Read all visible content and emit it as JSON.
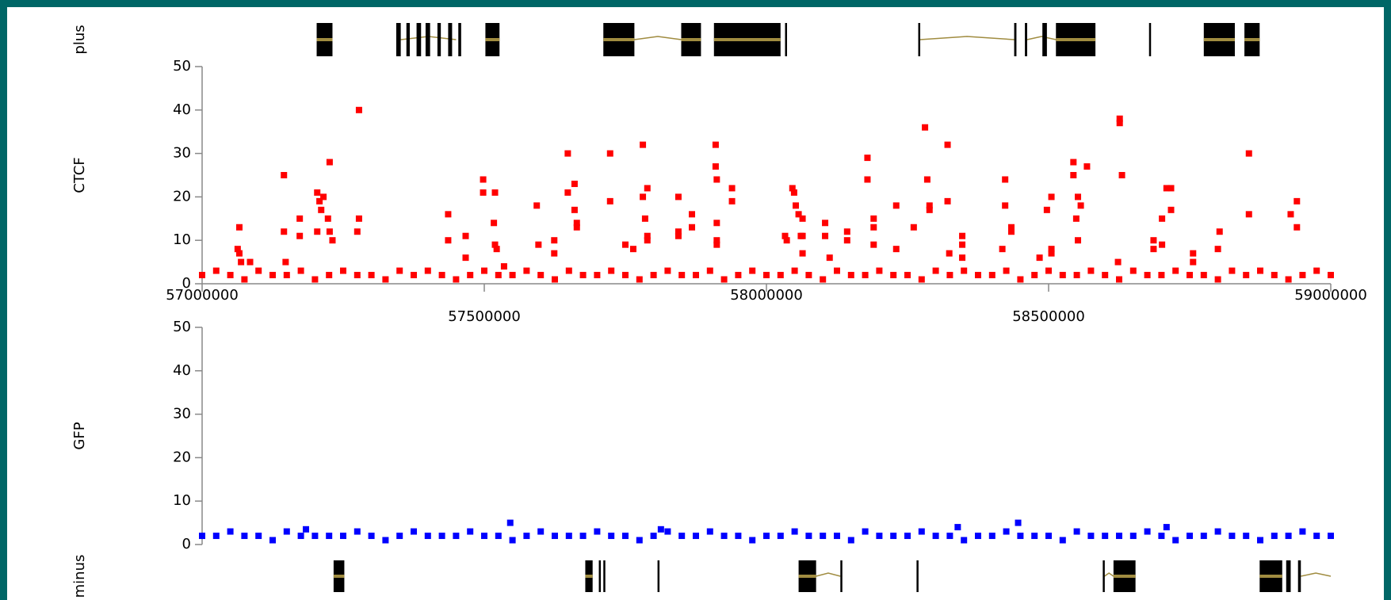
{
  "chart_data": [
    {
      "type": "gene-track",
      "label": "plus",
      "xlim": [
        57000000,
        59000000
      ],
      "strand_color": "#000000",
      "intron_color": "#a08c40",
      "exons": [
        [
          57203000,
          57231000
        ],
        [
          57344000,
          57352000
        ],
        [
          57362000,
          57368000
        ],
        [
          57380000,
          57388000
        ],
        [
          57396000,
          57404000
        ],
        [
          57417000,
          57423000
        ],
        [
          57436000,
          57443000
        ],
        [
          57454000,
          57459000
        ],
        [
          57502000,
          57527000
        ],
        [
          57711000,
          57766000
        ],
        [
          57849000,
          57884000
        ],
        [
          57907000,
          58025000
        ],
        [
          58033000,
          58036000
        ],
        [
          58269000,
          58272000
        ],
        [
          58439000,
          58443000
        ],
        [
          58458000,
          58462000
        ],
        [
          58489000,
          58497000
        ],
        [
          58513000,
          58583000
        ],
        [
          58678000,
          58681000
        ],
        [
          58775000,
          58830000
        ],
        [
          58847000,
          58874000
        ]
      ],
      "introns": [
        [
          57352000,
          57450000
        ],
        [
          57766000,
          57849000
        ],
        [
          58272000,
          58439000
        ],
        [
          58462000,
          58513000
        ]
      ]
    },
    {
      "type": "scatter",
      "ylabel": "CTCF",
      "color": "#ff0000",
      "xlim": [
        57000000,
        59000000
      ],
      "ylim": [
        0,
        50
      ],
      "yticks": [
        0,
        10,
        20,
        30,
        40,
        50
      ],
      "xticks": [
        57000000,
        57500000,
        58000000,
        58500000,
        59000000
      ],
      "x": [
        57000000,
        57025000,
        57050000,
        57075000,
        57100000,
        57125000,
        57150000,
        57175000,
        57200000,
        57225000,
        57250000,
        57275000,
        57300000,
        57325000,
        57350000,
        57375000,
        57400000,
        57425000,
        57450000,
        57475000,
        57500000,
        57525000,
        57550000,
        57575000,
        57600000,
        57625000,
        57650000,
        57675000,
        57700000,
        57725000,
        57750000,
        57775000,
        57800000,
        57825000,
        57850000,
        57875000,
        57900000,
        57925000,
        57950000,
        57975000,
        58000000,
        58025000,
        58050000,
        58075000,
        58100000,
        58125000,
        58150000,
        58175000,
        58200000,
        58225000,
        58250000,
        58275000,
        58300000,
        58325000,
        58350000,
        58375000,
        58400000,
        58425000,
        58450000,
        58475000,
        58500000,
        58525000,
        58550000,
        58575000,
        58600000,
        58625000,
        58650000,
        58675000,
        58700000,
        58725000,
        58750000,
        58775000,
        58800000,
        58825000,
        58850000,
        58875000,
        58900000,
        58925000,
        58950000,
        58975000,
        59000000,
        57066000,
        57063000,
        57066000,
        57069000,
        57085000,
        57145000,
        57145000,
        57148000,
        57173000,
        57173000,
        57204000,
        57208000,
        57211000,
        57204000,
        57215000,
        57223000,
        57226000,
        57226000,
        57231000,
        57278000,
        57278000,
        57275000,
        57436000,
        57436000,
        57467000,
        57467000,
        57498000,
        57498000,
        57519000,
        57517000,
        57519000,
        57522000,
        57535000,
        57593000,
        57596000,
        57624000,
        57624000,
        57648000,
        57648000,
        57660000,
        57660000,
        57664000,
        57664000,
        57723000,
        57723000,
        57750000,
        57764000,
        57781000,
        57781000,
        57785000,
        57789000,
        57789000,
        57789000,
        57844000,
        57844000,
        57844000,
        57868000,
        57868000,
        57910000,
        57910000,
        57912000,
        57912000,
        57912000,
        57912000,
        57939000,
        57939000,
        58046000,
        58049000,
        58052000,
        58057000,
        58061000,
        58033000,
        58036000,
        58064000,
        58064000,
        58064000,
        58104000,
        58104000,
        58112000,
        58143000,
        58143000,
        58179000,
        58179000,
        58190000,
        58190000,
        58190000,
        58230000,
        58230000,
        58261000,
        58281000,
        58285000,
        58289000,
        58289000,
        58321000,
        58321000,
        58324000,
        58347000,
        58347000,
        58347000,
        58423000,
        58423000,
        58418000,
        58434000,
        58434000,
        58484000,
        58497000,
        58505000,
        58505000,
        58505000,
        58544000,
        58544000,
        58549000,
        58552000,
        58552000,
        58557000,
        58568000,
        58626000,
        58626000,
        58630000,
        58623000,
        58686000,
        58686000,
        58701000,
        58701000,
        58709000,
        58717000,
        58717000,
        58756000,
        58756000,
        58803000,
        58800000,
        58855000,
        58855000,
        58929000,
        58940000,
        58940000
      ],
      "values": [
        2,
        3,
        2,
        1,
        3,
        2,
        2,
        3,
        1,
        2,
        3,
        2,
        2,
        1,
        3,
        2,
        3,
        2,
        1,
        2,
        3,
        2,
        2,
        3,
        2,
        1,
        3,
        2,
        2,
        3,
        2,
        1,
        2,
        3,
        2,
        2,
        3,
        1,
        2,
        3,
        2,
        2,
        3,
        2,
        1,
        3,
        2,
        2,
        3,
        2,
        2,
        1,
        3,
        2,
        3,
        2,
        2,
        3,
        1,
        2,
        3,
        2,
        2,
        3,
        2,
        1,
        3,
        2,
        2,
        3,
        2,
        2,
        1,
        3,
        2,
        3,
        2,
        1,
        2,
        3,
        2,
        13,
        8,
        7,
        5,
        5,
        25,
        12,
        5,
        15,
        11,
        21,
        19,
        17,
        12,
        20,
        15,
        28,
        12,
        10,
        40,
        15,
        12,
        16,
        10,
        11,
        6,
        24,
        21,
        21,
        14,
        9,
        8,
        4,
        18,
        9,
        10,
        7,
        30,
        21,
        23,
        17,
        14,
        13,
        30,
        19,
        9,
        8,
        32,
        20,
        15,
        22,
        10,
        11,
        20,
        12,
        11,
        16,
        13,
        32,
        27,
        24,
        14,
        10,
        9,
        22,
        19,
        22,
        21,
        18,
        16,
        11,
        11,
        10,
        15,
        11,
        7,
        14,
        11,
        6,
        12,
        10,
        29,
        24,
        15,
        13,
        9,
        18,
        8,
        13,
        36,
        24,
        18,
        17,
        32,
        19,
        7,
        11,
        9,
        6,
        24,
        18,
        8,
        13,
        12,
        6,
        17,
        20,
        8,
        7,
        28,
        25,
        15,
        20,
        10,
        18,
        27,
        38,
        37,
        25,
        5,
        10,
        8,
        15,
        9,
        22,
        22,
        17,
        7,
        5,
        12,
        8,
        30,
        16,
        16,
        19,
        13
      ]
    },
    {
      "type": "scatter",
      "ylabel": "GFP",
      "color": "#0000ff",
      "xlim": [
        57000000,
        59000000
      ],
      "ylim": [
        0,
        50
      ],
      "yticks": [
        0,
        10,
        20,
        30,
        40,
        50
      ],
      "x": [
        57000000,
        57025000,
        57050000,
        57075000,
        57100000,
        57125000,
        57150000,
        57175000,
        57200000,
        57225000,
        57250000,
        57275000,
        57300000,
        57325000,
        57350000,
        57375000,
        57400000,
        57425000,
        57450000,
        57475000,
        57500000,
        57525000,
        57550000,
        57575000,
        57600000,
        57625000,
        57650000,
        57675000,
        57700000,
        57725000,
        57750000,
        57775000,
        57800000,
        57825000,
        57850000,
        57875000,
        57900000,
        57925000,
        57950000,
        57975000,
        58000000,
        58025000,
        58050000,
        58075000,
        58100000,
        58125000,
        58150000,
        58175000,
        58200000,
        58225000,
        58250000,
        58275000,
        58300000,
        58325000,
        58350000,
        58375000,
        58400000,
        58425000,
        58450000,
        58475000,
        58500000,
        58525000,
        58550000,
        58575000,
        58600000,
        58625000,
        58650000,
        58675000,
        58700000,
        58725000,
        58750000,
        58775000,
        58800000,
        58825000,
        58850000,
        58875000,
        58900000,
        58925000,
        58950000,
        58975000,
        59000000,
        57546000,
        58446000,
        57184000,
        57813000,
        58709000,
        58339000
      ],
      "values": [
        2,
        2,
        3,
        2,
        2,
        1,
        3,
        2,
        2,
        2,
        2,
        3,
        2,
        1,
        2,
        3,
        2,
        2,
        2,
        3,
        2,
        2,
        1,
        2,
        3,
        2,
        2,
        2,
        3,
        2,
        2,
        1,
        2,
        3,
        2,
        2,
        3,
        2,
        2,
        1,
        2,
        2,
        3,
        2,
        2,
        2,
        1,
        3,
        2,
        2,
        2,
        3,
        2,
        2,
        1,
        2,
        2,
        3,
        2,
        2,
        2,
        1,
        3,
        2,
        2,
        2,
        2,
        3,
        2,
        1,
        2,
        2,
        3,
        2,
        2,
        1,
        2,
        2,
        3,
        2,
        2,
        5,
        5,
        3.5,
        3.5,
        4,
        4
      ]
    },
    {
      "type": "gene-track",
      "label": "minus",
      "xlim": [
        57000000,
        59000000
      ],
      "strand_color": "#000000",
      "intron_color": "#a08c40",
      "exons": [
        [
          57233000,
          57252000
        ],
        [
          57679000,
          57692000
        ],
        [
          57703000,
          57706000
        ],
        [
          57711000,
          57714000
        ],
        [
          57807000,
          57810000
        ],
        [
          58057000,
          58088000
        ],
        [
          58131000,
          58134000
        ],
        [
          58266000,
          58269000
        ],
        [
          58596000,
          58599000
        ],
        [
          58615000,
          58654000
        ],
        [
          58874000,
          58914000
        ],
        [
          58921000,
          58929000
        ],
        [
          58942000,
          58947000
        ]
      ],
      "introns": [
        [
          58088000,
          58131000
        ],
        [
          58599000,
          58615000
        ],
        [
          58947000,
          59000000
        ]
      ]
    }
  ]
}
